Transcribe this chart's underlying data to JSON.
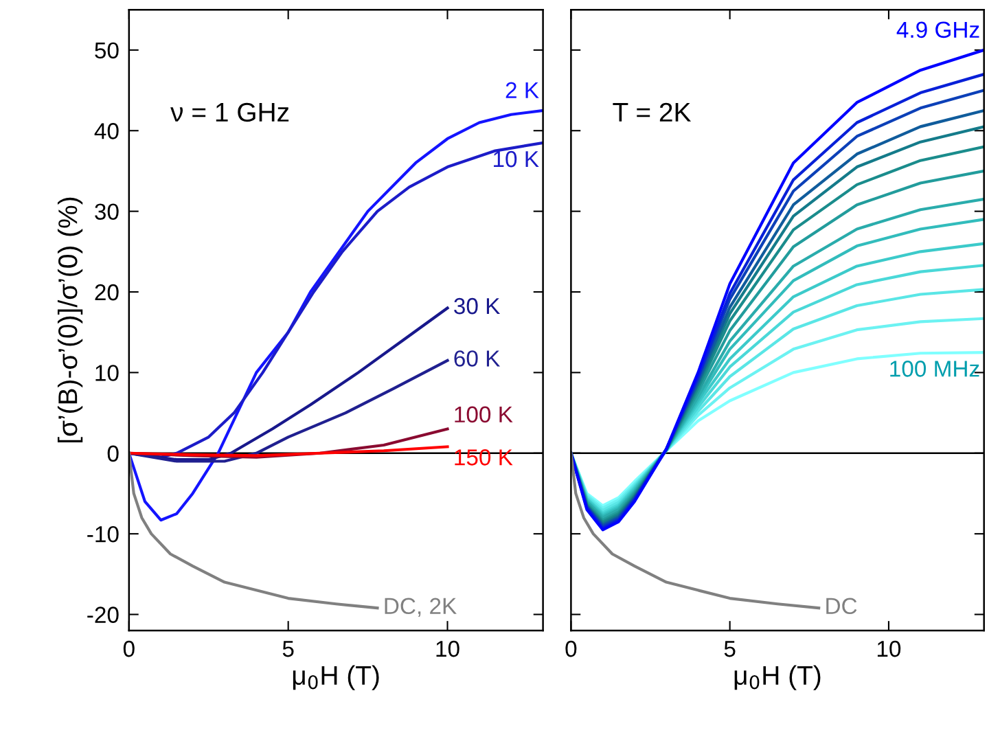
{
  "chart_data": [
    {
      "type": "line",
      "xlim": [
        0,
        13
      ],
      "ylim": [
        -22,
        55
      ],
      "xticks": [
        0,
        5,
        10
      ],
      "yticks": [
        -20,
        -10,
        0,
        10,
        20,
        30,
        40,
        50
      ],
      "xlabel": "μ$_{0}$H (T)",
      "ylabel": "[σ’(B)-σ’(0)]/σ’(0) (%)",
      "annotations": [
        "ν = 1 GHz"
      ],
      "legend": false,
      "grid": false,
      "ref_lines": [
        {
          "axis": "y",
          "value": 0,
          "color": "#000000"
        }
      ],
      "series": [
        {
          "name": "2 K",
          "color": "#1414ff",
          "x": [
            0,
            0.5,
            1,
            1.5,
            2,
            2.8,
            4,
            5,
            5.7,
            7.5,
            9,
            10,
            11,
            12,
            13
          ],
          "values": [
            0,
            -6,
            -8.3,
            -7.5,
            -5,
            0,
            10,
            15,
            20,
            30,
            36,
            39,
            41,
            42,
            42.5
          ]
        },
        {
          "name": "10 K",
          "color": "#1c1cc8",
          "x": [
            0,
            1,
            1.5,
            2.5,
            3.3,
            4.2,
            5,
            5.8,
            6.7,
            7.8,
            8.8,
            10,
            11.5,
            13
          ],
          "values": [
            0,
            -0.5,
            0,
            2,
            5,
            10,
            15,
            20,
            25,
            30,
            33,
            35.5,
            37.5,
            38.5
          ]
        },
        {
          "name": "30 K",
          "color": "#18188c",
          "x": [
            0,
            1.5,
            2.5,
            3.2,
            4.5,
            5.7,
            7.2,
            8.6,
            10
          ],
          "values": [
            0,
            -0.8,
            -0.8,
            0,
            3,
            6,
            10,
            14,
            18
          ]
        },
        {
          "name": "60 K",
          "color": "#202090",
          "x": [
            0,
            1.5,
            3,
            4,
            5,
            6.8,
            8.3,
            10
          ],
          "values": [
            0,
            -1,
            -1,
            0,
            2,
            5,
            8,
            11.5
          ]
        },
        {
          "name": "100 K",
          "color": "#8a0a30",
          "x": [
            0,
            2,
            4,
            6,
            8,
            10
          ],
          "values": [
            0,
            -0.3,
            -0.5,
            0,
            1,
            3
          ]
        },
        {
          "name": "150 K",
          "color": "#ff0000",
          "x": [
            0,
            2,
            4,
            6,
            8,
            10
          ],
          "values": [
            0,
            -0.2,
            -0.3,
            0,
            0.3,
            0.8
          ]
        },
        {
          "name": "DC, 2K",
          "color": "#808080",
          "x": [
            0,
            0.15,
            0.4,
            0.7,
            1.3,
            2,
            3,
            4,
            5,
            6.5,
            7.8
          ],
          "values": [
            0,
            -5,
            -8,
            -10,
            -12.5,
            -14,
            -16,
            -17,
            -18,
            -18.7,
            -19.2
          ]
        }
      ]
    },
    {
      "type": "line",
      "xlim": [
        0,
        13
      ],
      "ylim": [
        -22,
        55
      ],
      "xticks": [
        0,
        5,
        10
      ],
      "yticks": [
        -20,
        -10,
        0,
        10,
        20,
        30,
        40,
        50
      ],
      "xlabel": "μ$_{0}$H (T)",
      "tick_labels": "x",
      "annotations": [
        "T = 2K"
      ],
      "legend": false,
      "grid": false,
      "x": [
        0,
        0.5,
        1,
        1.5,
        2,
        3,
        4,
        5,
        7,
        9,
        11,
        13
      ],
      "ref_lines": [
        {
          "axis": "y",
          "value": 0,
          "color": "#000000"
        }
      ],
      "series": [
        {
          "name": "100 MHz",
          "color": "#80ffff",
          "values": [
            0,
            -5,
            -6.5,
            -5.5,
            -3.5,
            0.3,
            4,
            6.5,
            10,
            11.7,
            12.4,
            12.5
          ]
        },
        {
          "color": "#6cf2f2",
          "values": [
            0,
            -5.2,
            -6.8,
            -5.8,
            -3.8,
            0.3,
            4.7,
            8.1,
            12.9,
            15.3,
            16.3,
            16.7
          ]
        },
        {
          "color": "#5ae6e6",
          "values": [
            0,
            -5.4,
            -7.1,
            -6.1,
            -4.0,
            0.3,
            5.2,
            9.5,
            15.4,
            18.3,
            19.7,
            20.3
          ]
        },
        {
          "color": "#4ad8d8",
          "values": [
            0,
            -5.6,
            -7.4,
            -6.4,
            -4.2,
            0.4,
            5.7,
            10.7,
            17.5,
            20.9,
            22.5,
            23.3
          ]
        },
        {
          "color": "#3ccaca",
          "values": [
            0,
            -5.7,
            -7.6,
            -6.6,
            -4.4,
            0.4,
            6.2,
            11.7,
            19.4,
            23.2,
            25.0,
            26.0
          ]
        },
        {
          "color": "#32bcbc",
          "values": [
            0,
            -5.9,
            -7.8,
            -6.8,
            -4.6,
            0.4,
            6.6,
            12.9,
            21.4,
            25.7,
            27.8,
            29.0
          ]
        },
        {
          "color": "#2aacac",
          "values": [
            0,
            -6.0,
            -8.0,
            -7.0,
            -4.8,
            0.4,
            7.0,
            13.9,
            23.2,
            27.8,
            30.2,
            31.5
          ]
        },
        {
          "color": "#229c9c",
          "values": [
            0,
            -6.2,
            -8.3,
            -7.3,
            -5.0,
            0.4,
            7.6,
            15.2,
            25.6,
            30.8,
            33.5,
            35.0
          ]
        },
        {
          "color": "#1a8c8c",
          "values": [
            0,
            -6.4,
            -8.5,
            -7.5,
            -5.2,
            0.4,
            8.1,
            16.4,
            27.7,
            33.3,
            36.3,
            38.0
          ]
        },
        {
          "color": "#147b8a",
          "values": [
            0,
            -6.5,
            -8.7,
            -7.7,
            -5.4,
            0.4,
            8.5,
            17.3,
            29.4,
            35.5,
            38.6,
            40.5
          ]
        },
        {
          "color": "#105c9c",
          "values": [
            0,
            -6.6,
            -8.9,
            -7.9,
            -5.5,
            0.5,
            8.8,
            18.1,
            30.8,
            37.1,
            40.5,
            42.5
          ]
        },
        {
          "color": "#0c40b8",
          "values": [
            0,
            -6.7,
            -9.1,
            -8.1,
            -5.7,
            0.5,
            9.2,
            19.1,
            32.5,
            39.3,
            42.8,
            45.0
          ]
        },
        {
          "color": "#0820d8",
          "values": [
            0,
            -6.8,
            -9.3,
            -8.3,
            -5.8,
            0.5,
            9.5,
            19.8,
            33.9,
            41.0,
            44.7,
            47.0
          ]
        },
        {
          "name": "4.9 GHz",
          "color": "#0000ff",
          "values": [
            0,
            -7,
            -9.5,
            -8.5,
            -6,
            0.5,
            10,
            21,
            36,
            43.5,
            47.5,
            50
          ]
        },
        {
          "name": "DC",
          "color": "#808080",
          "x": [
            0,
            0.15,
            0.4,
            0.7,
            1.3,
            2,
            3,
            4,
            5,
            6.5,
            7.8
          ],
          "values": [
            0,
            -5,
            -8,
            -10,
            -12.5,
            -14,
            -16,
            -17,
            -18,
            -18.7,
            -19.2
          ]
        }
      ]
    }
  ]
}
